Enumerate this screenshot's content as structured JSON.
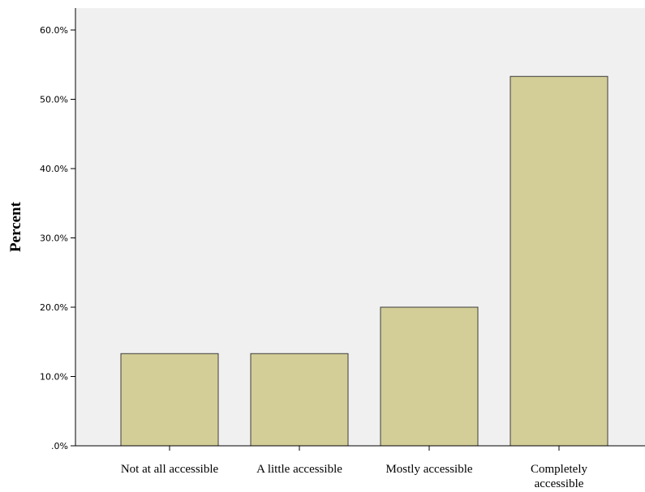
{
  "chart_data": {
    "type": "bar",
    "categories": [
      [
        "Not at all accessible"
      ],
      [
        "A little accessible"
      ],
      [
        "Mostly accessible"
      ],
      [
        "Completely",
        "accessible"
      ]
    ],
    "values": [
      13.3,
      13.3,
      20.0,
      53.3
    ],
    "ylabel": "Percent",
    "xlabel": "",
    "ylim": [
      0,
      60
    ],
    "yticks": [
      0,
      10,
      20,
      30,
      40,
      50,
      60
    ],
    "ytick_labels": [
      ".0%",
      "10.0%",
      "20.0%",
      "30.0%",
      "40.0%",
      "50.0%",
      "60.0%"
    ],
    "grid": false,
    "colors": {
      "plot_background": "#f0f0f0",
      "bar_fill": "#d3ce97",
      "bar_stroke": "#3c3c3c",
      "axis": "#000000"
    }
  }
}
